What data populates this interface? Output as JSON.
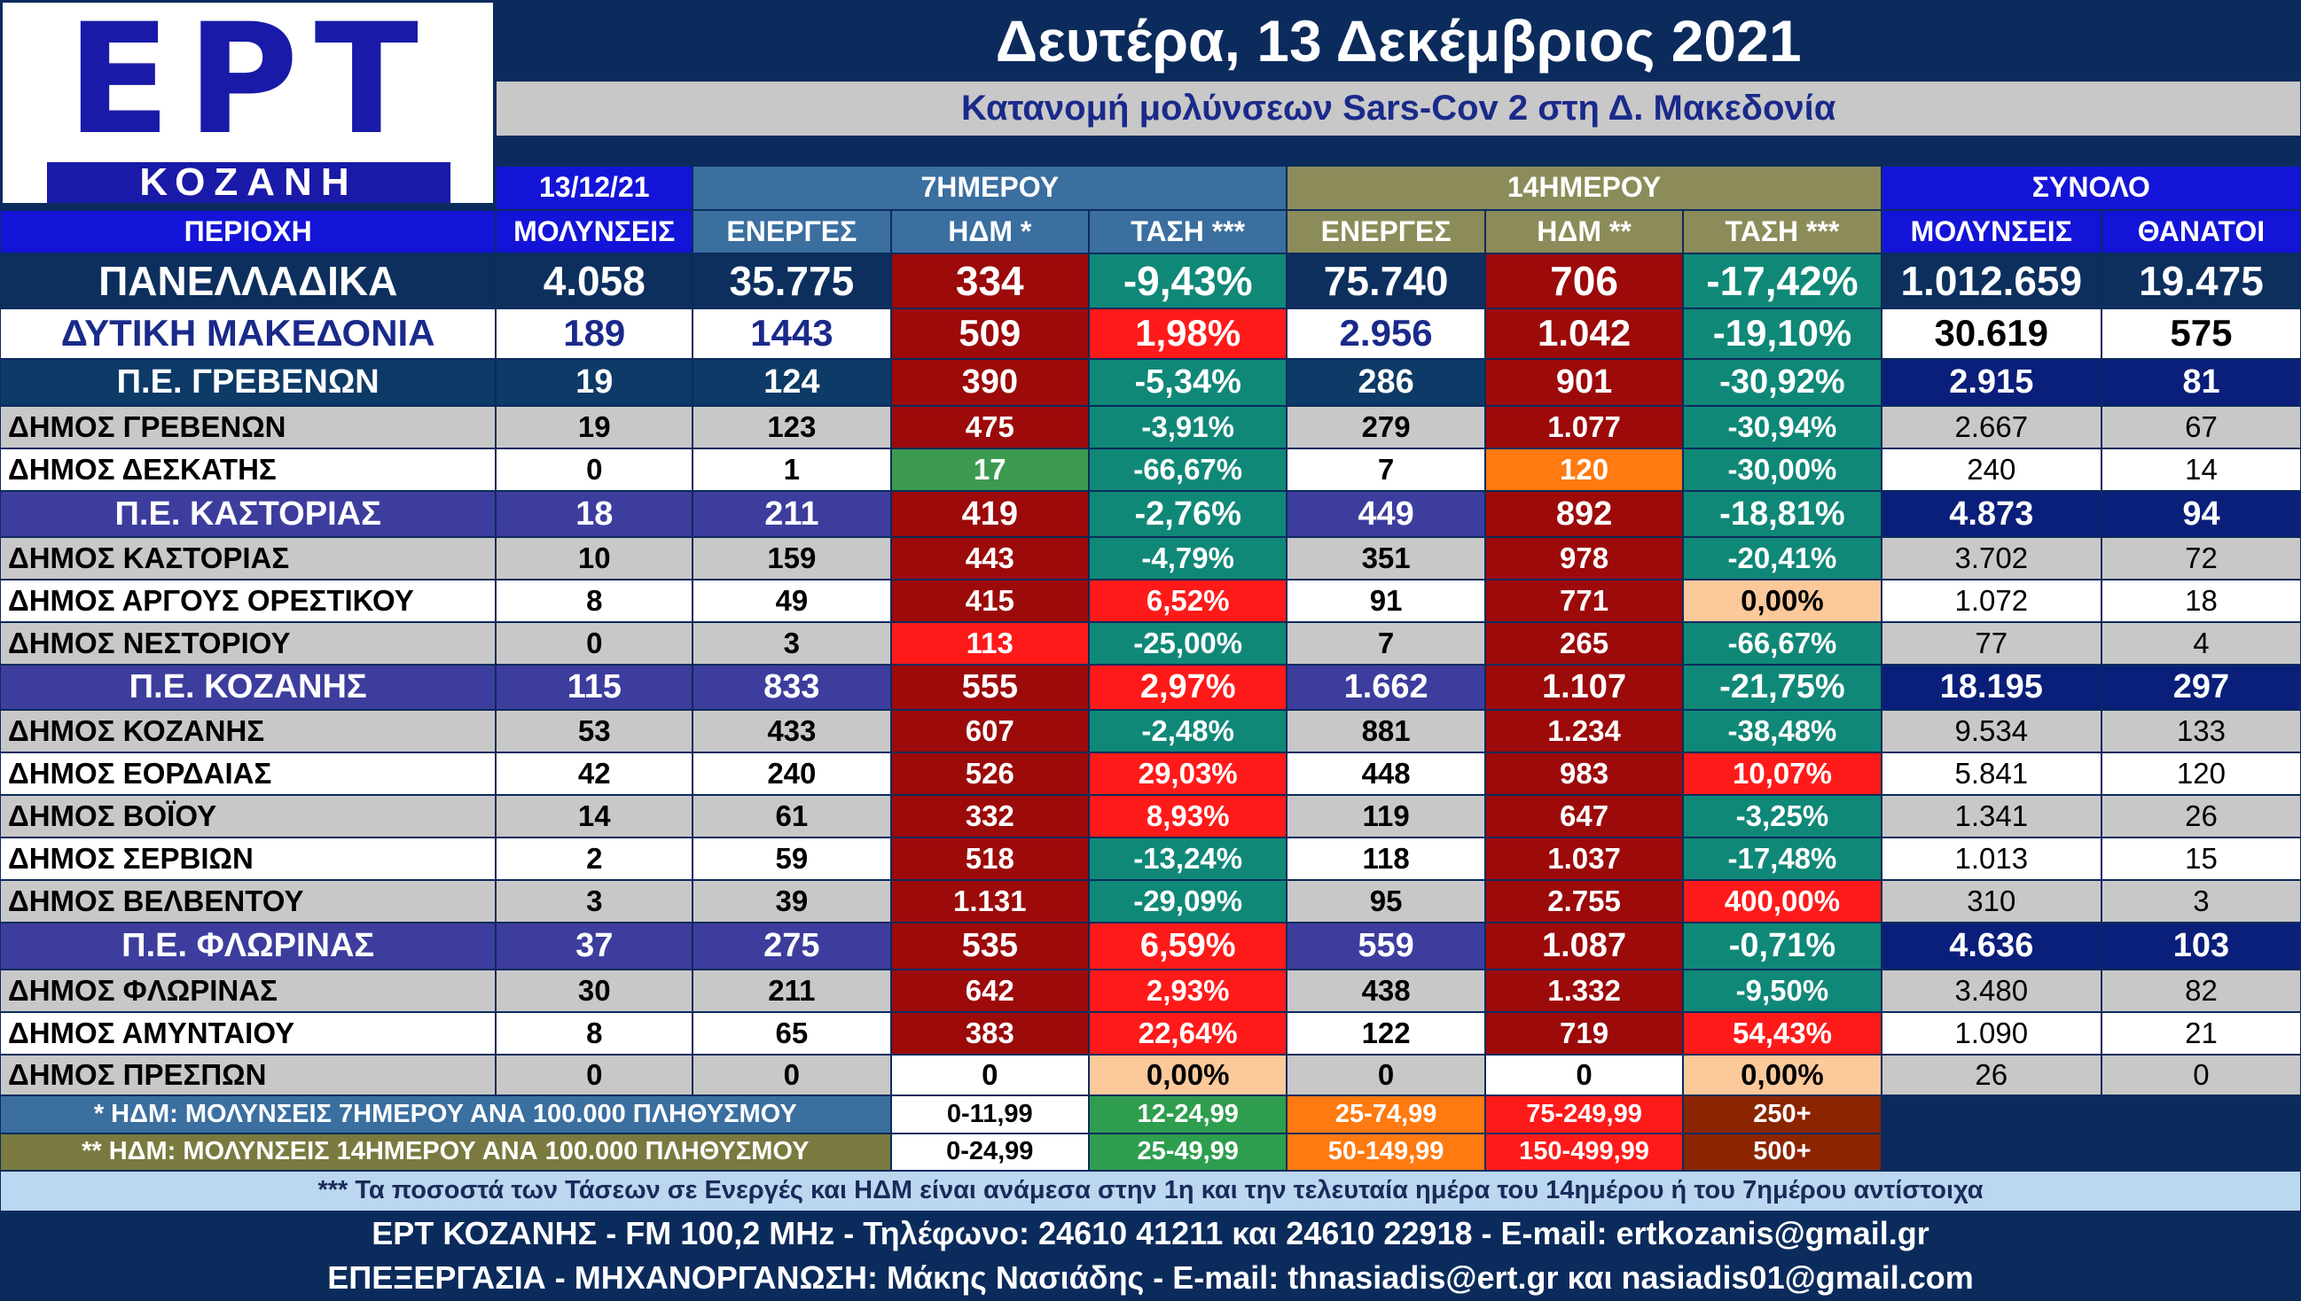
{
  "logo": {
    "main": "ΕΡΤ",
    "sub": "ΚΟΖΑΝΗ"
  },
  "header": {
    "title": "Δευτέρα, 13 Δεκέμβριος 2021",
    "subtitle": "Κατανομή μολύνσεων Sars-Cov 2 στη Δ. Μακεδονία"
  },
  "table": {
    "groups": [
      "13/12/21",
      "7ΗΜΕΡΟΥ",
      "14ΗΜΕΡΟΥ",
      "ΣΥΝΟΛΟ"
    ],
    "columns": [
      "ΠΕΡΙΟΧΗ",
      "ΜΟΛΥΝΣΕΙΣ",
      "ΕΝΕΡΓΕΣ",
      "ΗΔΜ *",
      "ΤΑΣΗ ***",
      "ΕΝΕΡΓΕΣ",
      "ΗΔΜ **",
      "ΤΑΣΗ ***",
      "ΜΟΛΥΝΣΕΙΣ",
      "ΘΑΝΑΤΟΙ"
    ],
    "rows": [
      {
        "cells": [
          "ΠΑΝΕΛΛΑΔΙΚΑ",
          "4.058",
          "35.775",
          "334",
          "-9,43%",
          "75.740",
          "706",
          "-17,42%",
          "1.012.659",
          "19.475"
        ],
        "fills": [
          "#9c0a0a",
          "#108878",
          "#9c0a0a",
          "#108878"
        ]
      },
      {
        "cells": [
          "ΔΥΤΙΚΗ ΜΑΚΕΔΟΝΙΑ",
          "189",
          "1443",
          "509",
          "1,98%",
          "2.956",
          "1.042",
          "-19,10%",
          "30.619",
          "575"
        ],
        "fills": [
          "#9c0a0a",
          "#ff1a1a",
          "#9c0a0a",
          "#108878"
        ]
      },
      {
        "cells": [
          "Π.Ε. ΓΡΕΒΕΝΩΝ",
          "19",
          "124",
          "390",
          "-5,34%",
          "286",
          "901",
          "-30,92%",
          "2.915",
          "81"
        ],
        "fills": [
          "#9c0a0a",
          "#108878",
          "#9c0a0a",
          "#108878"
        ]
      },
      {
        "cells": [
          "ΔΗΜΟΣ ΓΡΕΒΕΝΩΝ",
          "19",
          "123",
          "475",
          "-3,91%",
          "279",
          "1.077",
          "-30,94%",
          "2.667",
          "67"
        ],
        "fills": [
          "#9c0a0a",
          "#108878",
          "#9c0a0a",
          "#108878"
        ]
      },
      {
        "cells": [
          "ΔΗΜΟΣ ΔΕΣΚΑΤΗΣ",
          "0",
          "1",
          "17",
          "-66,67%",
          "7",
          "120",
          "-30,00%",
          "240",
          "14"
        ],
        "fills": [
          "#3c9a50",
          "#108878",
          "#ff7a10",
          "#108878"
        ]
      },
      {
        "cells": [
          "Π.Ε. ΚΑΣΤΟΡΙΑΣ",
          "18",
          "211",
          "419",
          "-2,76%",
          "449",
          "892",
          "-18,81%",
          "4.873",
          "94"
        ],
        "fills": [
          "#9c0a0a",
          "#108878",
          "#9c0a0a",
          "#108878"
        ]
      },
      {
        "cells": [
          "ΔΗΜΟΣ ΚΑΣΤΟΡΙΑΣ",
          "10",
          "159",
          "443",
          "-4,79%",
          "351",
          "978",
          "-20,41%",
          "3.702",
          "72"
        ],
        "fills": [
          "#9c0a0a",
          "#108878",
          "#9c0a0a",
          "#108878"
        ]
      },
      {
        "cells": [
          "ΔΗΜΟΣ ΑΡΓΟΥΣ ΟΡΕΣΤΙΚΟΥ",
          "8",
          "49",
          "415",
          "6,52%",
          "91",
          "771",
          "0,00%",
          "1.072",
          "18"
        ],
        "fills": [
          "#9c0a0a",
          "#ff1a1a",
          "#9c0a0a",
          "#fcc99a"
        ]
      },
      {
        "cells": [
          "ΔΗΜΟΣ ΝΕΣΤΟΡΙΟΥ",
          "0",
          "3",
          "113",
          "-25,00%",
          "7",
          "265",
          "-66,67%",
          "77",
          "4"
        ],
        "fills": [
          "#ff1a1a",
          "#108878",
          "#9c0a0a",
          "#108878"
        ]
      },
      {
        "cells": [
          "Π.Ε. ΚΟΖΑΝΗΣ",
          "115",
          "833",
          "555",
          "2,97%",
          "1.662",
          "1.107",
          "-21,75%",
          "18.195",
          "297"
        ],
        "fills": [
          "#9c0a0a",
          "#ff1a1a",
          "#9c0a0a",
          "#108878"
        ]
      },
      {
        "cells": [
          "ΔΗΜΟΣ ΚΟΖΑΝΗΣ",
          "53",
          "433",
          "607",
          "-2,48%",
          "881",
          "1.234",
          "-38,48%",
          "9.534",
          "133"
        ],
        "fills": [
          "#9c0a0a",
          "#108878",
          "#9c0a0a",
          "#108878"
        ]
      },
      {
        "cells": [
          "ΔΗΜΟΣ ΕΟΡΔΑΙΑΣ",
          "42",
          "240",
          "526",
          "29,03%",
          "448",
          "983",
          "10,07%",
          "5.841",
          "120"
        ],
        "fills": [
          "#9c0a0a",
          "#ff1a1a",
          "#9c0a0a",
          "#ff1a1a"
        ]
      },
      {
        "cells": [
          "ΔΗΜΟΣ ΒΟΪΟΥ",
          "14",
          "61",
          "332",
          "8,93%",
          "119",
          "647",
          "-3,25%",
          "1.341",
          "26"
        ],
        "fills": [
          "#9c0a0a",
          "#ff1a1a",
          "#9c0a0a",
          "#108878"
        ]
      },
      {
        "cells": [
          "ΔΗΜΟΣ ΣΕΡΒΙΩΝ",
          "2",
          "59",
          "518",
          "-13,24%",
          "118",
          "1.037",
          "-17,48%",
          "1.013",
          "15"
        ],
        "fills": [
          "#9c0a0a",
          "#108878",
          "#9c0a0a",
          "#108878"
        ]
      },
      {
        "cells": [
          "ΔΗΜΟΣ ΒΕΛΒΕΝΤΟΥ",
          "3",
          "39",
          "1.131",
          "-29,09%",
          "95",
          "2.755",
          "400,00%",
          "310",
          "3"
        ],
        "fills": [
          "#9c0a0a",
          "#108878",
          "#9c0a0a",
          "#ff1a1a"
        ]
      },
      {
        "cells": [
          "Π.Ε. ΦΛΩΡΙΝΑΣ",
          "37",
          "275",
          "535",
          "6,59%",
          "559",
          "1.087",
          "-0,71%",
          "4.636",
          "103"
        ],
        "fills": [
          "#9c0a0a",
          "#ff1a1a",
          "#9c0a0a",
          "#108878"
        ]
      },
      {
        "cells": [
          "ΔΗΜΟΣ ΦΛΩΡΙΝΑΣ",
          "30",
          "211",
          "642",
          "2,93%",
          "438",
          "1.332",
          "-9,50%",
          "3.480",
          "82"
        ],
        "fills": [
          "#9c0a0a",
          "#ff1a1a",
          "#9c0a0a",
          "#108878"
        ]
      },
      {
        "cells": [
          "ΔΗΜΟΣ ΑΜΥΝΤΑΙΟΥ",
          "8",
          "65",
          "383",
          "22,64%",
          "122",
          "719",
          "54,43%",
          "1.090",
          "21"
        ],
        "fills": [
          "#9c0a0a",
          "#ff1a1a",
          "#9c0a0a",
          "#ff1a1a"
        ]
      },
      {
        "cells": [
          "ΔΗΜΟΣ ΠΡΕΣΠΩΝ",
          "0",
          "0",
          "0",
          "0,00%",
          "0",
          "0",
          "0,00%",
          "26",
          "0"
        ],
        "fills": [
          "#ffffff",
          "#fcc99a",
          "#ffffff",
          "#fcc99a"
        ]
      }
    ]
  },
  "legend": {
    "colors": [
      "#ffffff",
      "#2e9e4e",
      "#ff7a10",
      "#ff1a1a",
      "#8b2500"
    ],
    "rows": [
      {
        "label": "* ΗΔΜ: ΜΟΛΥΝΣΕΙΣ 7ΗΜΕΡΟΥ ΑΝΑ 100.000 ΠΛΗΘΥΣΜΟΥ",
        "ranges": [
          "0-11,99",
          "12-24,99",
          "25-74,99",
          "75-249,99",
          "250+"
        ]
      },
      {
        "label": "** ΗΔΜ: ΜΟΛΥΝΣΕΙΣ 14ΗΜΕΡΟΥ ΑΝΑ 100.000 ΠΛΗΘΥΣΜΟΥ",
        "ranges": [
          "0-24,99",
          "25-49,99",
          "50-149,99",
          "150-499,99",
          "500+"
        ]
      }
    ]
  },
  "footnote": "*** Τα ποσοστά των Τάσεων σε Ενεργές και ΗΔΜ είναι ανάμεσα στην 1η και την τελευταία ημέρα του 14ημέρου ή του 7ημέρου αντίστοιχα",
  "footer": [
    "ΕΡΤ ΚΟΖΑΝΗΣ - FM 100,2 MHz - Τηλέφωνο:  24610 41211 και 24610 22918 - E-mail: ertkozanis@gmail.gr",
    "ΕΠΕΞΕΡΓΑΣΙΑ  -  ΜΗΧΑΝΟΡΓΑΝΩΣΗ: Μάκης Νασιάδης  -   E-mail: thnasiadis@ert.gr και nasiadis01@gmail.com"
  ]
}
